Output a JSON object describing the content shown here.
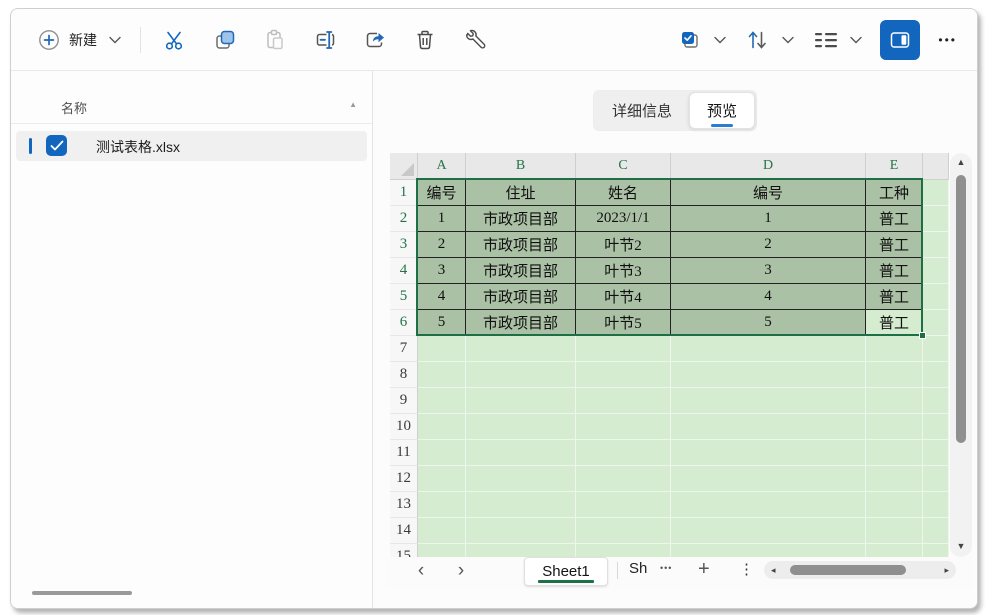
{
  "toolbar": {
    "new_label": "新建"
  },
  "file_list": {
    "header_label": "名称",
    "items": [
      {
        "name": "测试表格.xlsx",
        "checked": true
      }
    ]
  },
  "preview": {
    "tabs": [
      {
        "label": "详细信息",
        "active": false
      },
      {
        "label": "预览",
        "active": true
      }
    ],
    "spreadsheet": {
      "columns": [
        "A",
        "B",
        "C",
        "D",
        "E"
      ],
      "row_numbers": [
        1,
        2,
        3,
        4,
        5,
        6,
        7,
        8,
        9,
        10,
        11,
        12,
        13,
        14,
        15
      ],
      "cells": [
        [
          "编号",
          "住址",
          "姓名",
          "编号",
          "工种"
        ],
        [
          "1",
          "市政项目部",
          "2023/1/1",
          "1",
          "普工"
        ],
        [
          "2",
          "市政项目部",
          "叶节2",
          "2",
          "普工"
        ],
        [
          "3",
          "市政项目部",
          "叶节3",
          "3",
          "普工"
        ],
        [
          "4",
          "市政项目部",
          "叶节4",
          "4",
          "普工"
        ],
        [
          "5",
          "市政项目部",
          "叶节5",
          "5",
          "普工"
        ]
      ],
      "selection": {
        "range": "A1:E6",
        "active_cell": "E6"
      },
      "sheet_bar": {
        "active_tab": "Sheet1",
        "overflow_tab": "Sh"
      }
    }
  },
  "icons": {
    "chevron_left": "‹",
    "chevron_right": "›",
    "overflow_dots": "•••",
    "plus": "+",
    "kebab": "⋮",
    "scroll_up": "▲",
    "scroll_down": "▼",
    "scroll_left": "◂",
    "scroll_right": "▸",
    "sort_ascending": "▲",
    "more": "•••"
  },
  "colors": {
    "accent_blue": "#1266bd",
    "excel_header_green": "#24734a",
    "selection_border_green": "#1e6e46",
    "selected_cells_bg": "#abc1a5",
    "sheet_fill_green": "#d5ecd0",
    "tab_underline_blue": "#2b7cd3",
    "sheet_tab_underline_green": "#1c7145"
  }
}
